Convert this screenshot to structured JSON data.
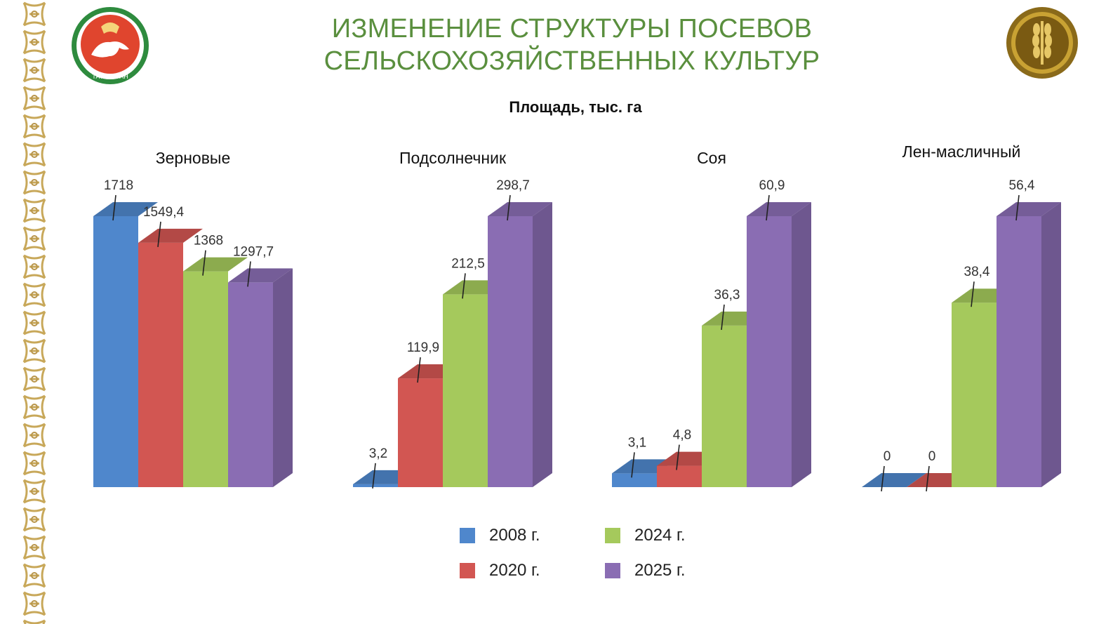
{
  "header": {
    "title_line1": "ИЗМЕНЕНИЕ СТРУКТУРЫ ПОСЕВОВ",
    "title_line2": "СЕЛЬСКОХОЗЯЙСТВЕННЫХ КУЛЬТУР",
    "emblem_left_text": "ТАТАРСТАН",
    "colors": {
      "title": "#5a8f3e",
      "ornament": "#c8a85a"
    }
  },
  "chart_data": {
    "type": "bar",
    "title": "Площадь, тыс. га",
    "series": [
      {
        "name": "2008 г.",
        "color": "#4f87cc"
      },
      {
        "name": "2020 г.",
        "color": "#d25652"
      },
      {
        "name": "2024 г.",
        "color": "#a5c95c"
      },
      {
        "name": "2025 г.",
        "color": "#8a6db3"
      }
    ],
    "groups": [
      {
        "name": "Зерновые",
        "values": [
          1718,
          1549.4,
          1368,
          1297.7
        ],
        "labels": [
          "1718",
          "1549,4",
          "1368",
          "1297,7"
        ],
        "ymax": 1718
      },
      {
        "name": "Подсолнечник",
        "values": [
          3.2,
          119.9,
          212.5,
          298.7
        ],
        "labels": [
          "3,2",
          "119,9",
          "212,5",
          "298,7"
        ],
        "ymax": 298.7
      },
      {
        "name": "Соя",
        "values": [
          3.1,
          4.8,
          36.3,
          60.9
        ],
        "labels": [
          "3,1",
          "4,8",
          "36,3",
          "60,9"
        ],
        "ymax": 60.9
      },
      {
        "name": "Лен-масличный",
        "values": [
          0,
          0,
          38.4,
          56.4
        ],
        "labels": [
          "0",
          "0",
          "38,4",
          "56,4"
        ],
        "ymax": 56.4
      }
    ],
    "legend": {
      "position": "bottom"
    }
  }
}
